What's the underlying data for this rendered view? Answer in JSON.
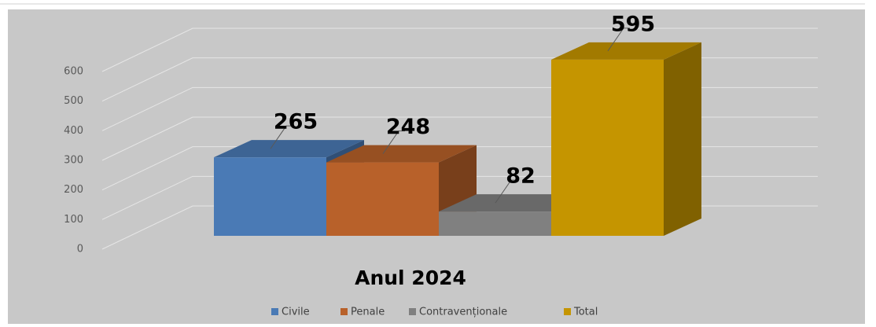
{
  "chart_data": {
    "type": "bar3d",
    "categories": [
      "Anul 2024"
    ],
    "series": [
      {
        "name": "Civile",
        "color": "#4a7ab5",
        "values": [
          265
        ]
      },
      {
        "name": "Penale",
        "color": "#b8612a",
        "values": [
          248
        ]
      },
      {
        "name": "Contravenționale",
        "color": "#808080",
        "values": [
          82
        ]
      },
      {
        "name": "Total",
        "color": "#c59500",
        "values": [
          595
        ]
      }
    ],
    "ylim": [
      0,
      600
    ],
    "yticks": [
      0,
      100,
      200,
      300,
      400,
      500,
      600
    ],
    "grid": true
  }
}
